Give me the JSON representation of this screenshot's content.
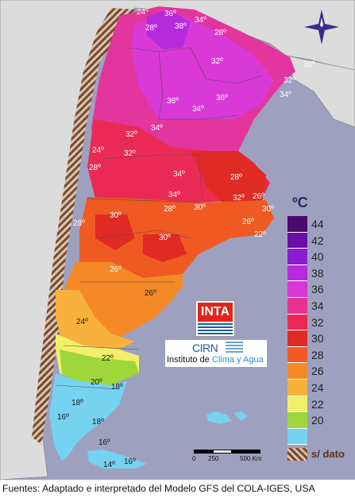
{
  "legend": {
    "title": "ºC",
    "entries": [
      {
        "value": "44",
        "color": "#4b0a6e"
      },
      {
        "value": "42",
        "color": "#6a0fa6"
      },
      {
        "value": "40",
        "color": "#8c1bd0"
      },
      {
        "value": "38",
        "color": "#b52bdb"
      },
      {
        "value": "36",
        "color": "#d936d6"
      },
      {
        "value": "34",
        "color": "#e83292"
      },
      {
        "value": "32",
        "color": "#ea2a55"
      },
      {
        "value": "30",
        "color": "#e02a24"
      },
      {
        "value": "28",
        "color": "#ef5a22"
      },
      {
        "value": "26",
        "color": "#f48a25"
      },
      {
        "value": "24",
        "color": "#f8b13c"
      },
      {
        "value": "22",
        "color": "#f2ef6b"
      },
      {
        "value": "20",
        "color": "#9fd63a"
      },
      {
        "value": "",
        "color": "#75d2f0"
      }
    ],
    "nodata_label": "s/ dato"
  },
  "logos": {
    "inta": "INTA",
    "cirn": "CIRN",
    "institute_prefix": "Instituto de ",
    "institute_accent": "Clima y Agua"
  },
  "scale": {
    "labels": [
      "0",
      "250",
      "500 Km"
    ]
  },
  "footer": "Fuentes: Adaptado e interpretado del Modelo GFS del COLA-IGES, USA",
  "map_labels": [
    "24º",
    "36º",
    "34º",
    "28º",
    "38º",
    "28º",
    "32º",
    "30º",
    "32º",
    "34º",
    "36º",
    "34º",
    "36º",
    "32º",
    "34º",
    "24º",
    "32º",
    "28º",
    "34º",
    "28º",
    "34º",
    "32º",
    "26º",
    "28º",
    "30º",
    "30º",
    "30º",
    "26º",
    "22º",
    "28º",
    "30º",
    "26º",
    "26º",
    "24º",
    "22º",
    "20º",
    "18º",
    "18º",
    "16º",
    "18º",
    "16º",
    "14º",
    "16º"
  ]
}
